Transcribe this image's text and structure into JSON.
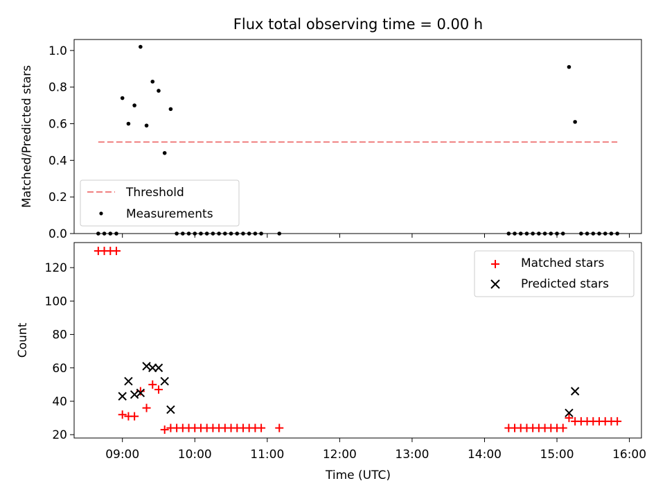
{
  "chart_data": [
    {
      "type": "scatter",
      "title": "Flux total observing time = 0.00 h",
      "xlabel": "",
      "ylabel": "Matched/Predicted stars",
      "ylim": [
        0,
        1.06
      ],
      "yticks": [
        "0.0",
        "0.2",
        "0.4",
        "0.6",
        "0.8",
        "1.0"
      ],
      "ytick_values": [
        0,
        0.2,
        0.4,
        0.6,
        0.8,
        1.0
      ],
      "grid": false,
      "legend_position": "lower-left",
      "threshold": {
        "name": "Threshold",
        "value": 0.5,
        "x": [
          "08:40",
          "15:50"
        ],
        "color": "#f08080",
        "style": "dashed"
      },
      "series": [
        {
          "name": "Measurements",
          "color": "#000000",
          "marker": "dot",
          "x": [
            "08:40",
            "08:45",
            "08:50",
            "08:55",
            "09:00",
            "09:05",
            "09:10",
            "09:15",
            "09:20",
            "09:25",
            "09:30",
            "09:35",
            "09:40",
            "09:45",
            "09:50",
            "09:55",
            "10:00",
            "10:05",
            "10:10",
            "10:15",
            "10:20",
            "10:25",
            "10:30",
            "10:35",
            "10:40",
            "10:45",
            "10:50",
            "10:55",
            "11:10",
            "14:20",
            "14:25",
            "14:30",
            "14:35",
            "14:40",
            "14:45",
            "14:50",
            "14:55",
            "15:00",
            "15:05",
            "15:10",
            "15:15",
            "15:20",
            "15:25",
            "15:30",
            "15:35",
            "15:40",
            "15:45",
            "15:50"
          ],
          "y": [
            0,
            0,
            0,
            0,
            0.74,
            0.6,
            0.7,
            1.02,
            0.59,
            0.83,
            0.78,
            0.44,
            0.68,
            0,
            0,
            0,
            0,
            0,
            0,
            0,
            0,
            0,
            0,
            0,
            0,
            0,
            0,
            0,
            0,
            0,
            0,
            0,
            0,
            0,
            0,
            0,
            0,
            0,
            0,
            0.91,
            0.61,
            0,
            0,
            0,
            0,
            0,
            0,
            0
          ]
        }
      ]
    },
    {
      "type": "scatter",
      "title": "",
      "xlabel": "Time (UTC)",
      "ylabel": "Count",
      "ylim": [
        18,
        135
      ],
      "yticks": [
        "20",
        "40",
        "60",
        "80",
        "100",
        "120"
      ],
      "ytick_values": [
        20,
        40,
        60,
        80,
        100,
        120
      ],
      "xlim": [
        "08:20",
        "16:10"
      ],
      "xticks": [
        "09:00",
        "10:00",
        "11:00",
        "12:00",
        "13:00",
        "14:00",
        "15:00",
        "16:00"
      ],
      "grid": false,
      "legend_position": "upper-right",
      "series": [
        {
          "name": "Matched stars",
          "color": "#ff0000",
          "marker": "plus",
          "x": [
            "08:40",
            "08:45",
            "08:50",
            "08:55",
            "09:00",
            "09:05",
            "09:10",
            "09:15",
            "09:20",
            "09:25",
            "09:30",
            "09:35",
            "09:40",
            "09:45",
            "09:50",
            "09:55",
            "10:00",
            "10:05",
            "10:10",
            "10:15",
            "10:20",
            "10:25",
            "10:30",
            "10:35",
            "10:40",
            "10:45",
            "10:50",
            "10:55",
            "11:10",
            "14:20",
            "14:25",
            "14:30",
            "14:35",
            "14:40",
            "14:45",
            "14:50",
            "14:55",
            "15:00",
            "15:05",
            "15:10",
            "15:15",
            "15:20",
            "15:25",
            "15:30",
            "15:35",
            "15:40",
            "15:45",
            "15:50"
          ],
          "y": [
            130,
            130,
            130,
            130,
            32,
            31,
            31,
            46,
            36,
            50,
            47,
            23,
            24,
            24,
            24,
            24,
            24,
            24,
            24,
            24,
            24,
            24,
            24,
            24,
            24,
            24,
            24,
            24,
            24,
            24,
            24,
            24,
            24,
            24,
            24,
            24,
            24,
            24,
            24,
            30,
            28,
            28,
            28,
            28,
            28,
            28,
            28,
            28
          ]
        },
        {
          "name": "Predicted stars",
          "color": "#000000",
          "marker": "x",
          "x": [
            "09:00",
            "09:05",
            "09:10",
            "09:15",
            "09:20",
            "09:25",
            "09:30",
            "09:35",
            "09:40",
            "15:10",
            "15:15"
          ],
          "y": [
            43,
            52,
            44,
            45,
            61,
            60,
            60,
            52,
            35,
            33,
            46
          ]
        }
      ]
    }
  ]
}
